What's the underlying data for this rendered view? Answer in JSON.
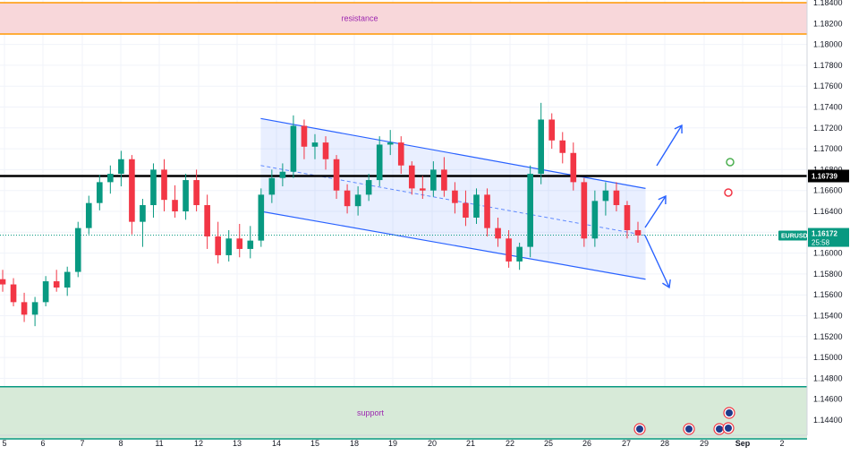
{
  "chart_data": {
    "type": "candlestick",
    "symbol": "EURUSD",
    "ylim": [
      1.143,
      1.184
    ],
    "y_ticks": [
      "1.18400",
      "1.18200",
      "1.18000",
      "1.17800",
      "1.17600",
      "1.17400",
      "1.17200",
      "1.17000",
      "1.16800",
      "1.16600",
      "1.16400",
      "1.16200",
      "1.16000",
      "1.15800",
      "1.15600",
      "1.15400",
      "1.15200",
      "1.15000",
      "1.14800",
      "1.14600",
      "1.14400"
    ],
    "x_ticks": [
      "5",
      "6",
      "7",
      "8",
      "11",
      "12",
      "13",
      "14",
      "15",
      "18",
      "19",
      "20",
      "21",
      "22",
      "25",
      "26",
      "27",
      "28",
      "29",
      "Sep",
      "2"
    ],
    "resistance": {
      "label": "resistance",
      "from": 1.181,
      "to": 1.184
    },
    "support": {
      "label": "support",
      "from": 1.1422,
      "to": 1.1472
    },
    "key_level": {
      "value": 1.16739,
      "label": "1.16739"
    },
    "current_price": {
      "value": 1.16172,
      "label": "1.16172",
      "countdown": "25:58",
      "symbol": "EURUSD"
    },
    "series": [
      {
        "values": [
          [
            1.1575,
            1.1584,
            1.1563,
            1.157
          ],
          [
            1.157,
            1.1576,
            1.1549,
            1.1553
          ],
          [
            1.1553,
            1.1562,
            1.1534,
            1.1541
          ],
          [
            1.1541,
            1.1558,
            1.153,
            1.1553
          ],
          [
            1.1553,
            1.1578,
            1.1549,
            1.1573
          ],
          [
            1.1573,
            1.1584,
            1.1563,
            1.1567
          ],
          [
            1.1567,
            1.1587,
            1.1559,
            1.1582
          ],
          [
            1.1582,
            1.163,
            1.1577,
            1.1624
          ],
          [
            1.1624,
            1.1655,
            1.1618,
            1.1648
          ],
          [
            1.1648,
            1.1675,
            1.1641,
            1.1668
          ],
          [
            1.1668,
            1.1684,
            1.1657,
            1.1676
          ],
          [
            1.1676,
            1.1698,
            1.1664,
            1.169
          ],
          [
            1.169,
            1.1694,
            1.1618,
            1.163
          ],
          [
            1.163,
            1.1652,
            1.1606,
            1.1646
          ],
          [
            1.1646,
            1.1686,
            1.1634,
            1.168
          ],
          [
            1.168,
            1.169,
            1.164,
            1.1651
          ],
          [
            1.1651,
            1.1665,
            1.1634,
            1.164
          ],
          [
            1.164,
            1.1676,
            1.1632,
            1.167
          ],
          [
            1.167,
            1.168,
            1.164,
            1.1646
          ],
          [
            1.1646,
            1.1656,
            1.1604,
            1.1616
          ],
          [
            1.1616,
            1.163,
            1.159,
            1.1598
          ],
          [
            1.1598,
            1.1622,
            1.1592,
            1.1614
          ],
          [
            1.1614,
            1.1628,
            1.1596,
            1.1604
          ],
          [
            1.1604,
            1.1626,
            1.1595,
            1.1612
          ],
          [
            1.1612,
            1.1662,
            1.1606,
            1.1656
          ],
          [
            1.1656,
            1.168,
            1.1648,
            1.1672
          ],
          [
            1.1672,
            1.1686,
            1.1664,
            1.1678
          ],
          [
            1.1678,
            1.1732,
            1.1672,
            1.1722
          ],
          [
            1.1722,
            1.1728,
            1.169,
            1.1702
          ],
          [
            1.1702,
            1.1714,
            1.169,
            1.1706
          ],
          [
            1.1706,
            1.1712,
            1.168,
            1.169
          ],
          [
            1.169,
            1.1694,
            1.1652,
            1.166
          ],
          [
            1.166,
            1.1666,
            1.1638,
            1.1645
          ],
          [
            1.1645,
            1.1664,
            1.1636,
            1.1656
          ],
          [
            1.1656,
            1.1676,
            1.165,
            1.167
          ],
          [
            1.167,
            1.1712,
            1.1664,
            1.1704
          ],
          [
            1.1704,
            1.1718,
            1.1694,
            1.1706
          ],
          [
            1.1706,
            1.1712,
            1.1676,
            1.1684
          ],
          [
            1.1684,
            1.1688,
            1.1656,
            1.1662
          ],
          [
            1.1662,
            1.1674,
            1.1652,
            1.166
          ],
          [
            1.166,
            1.1688,
            1.1654,
            1.168
          ],
          [
            1.168,
            1.1692,
            1.1654,
            1.166
          ],
          [
            1.166,
            1.1668,
            1.1638,
            1.1648
          ],
          [
            1.1648,
            1.166,
            1.1626,
            1.1634
          ],
          [
            1.1634,
            1.1662,
            1.1628,
            1.1656
          ],
          [
            1.1656,
            1.1662,
            1.1616,
            1.1624
          ],
          [
            1.1624,
            1.1634,
            1.1606,
            1.1614
          ],
          [
            1.1614,
            1.1622,
            1.1586,
            1.1592
          ],
          [
            1.1592,
            1.161,
            1.1584,
            1.1606
          ],
          [
            1.1606,
            1.1684,
            1.1596,
            1.1676
          ],
          [
            1.1676,
            1.1744,
            1.1666,
            1.1728
          ],
          [
            1.1728,
            1.1734,
            1.17,
            1.1708
          ],
          [
            1.1708,
            1.1716,
            1.1686,
            1.1696
          ],
          [
            1.1696,
            1.1706,
            1.166,
            1.1668
          ],
          [
            1.1668,
            1.1672,
            1.1606,
            1.1614
          ],
          [
            1.1614,
            1.166,
            1.1606,
            1.165
          ],
          [
            1.165,
            1.1668,
            1.1636,
            1.166
          ],
          [
            1.166,
            1.1668,
            1.164,
            1.1646
          ],
          [
            1.1646,
            1.165,
            1.1614,
            1.1622
          ],
          [
            1.1622,
            1.163,
            1.161,
            1.1617
          ]
        ]
      }
    ],
    "channel": {
      "upper": [
        [
          13.6,
          1.1729
        ],
        [
          27.5,
          1.1662
        ]
      ],
      "lower": [
        [
          13.6,
          1.164
        ],
        [
          27.5,
          1.1575
        ]
      ],
      "mid": [
        [
          13.6,
          1.1684
        ],
        [
          27.5,
          1.1617
        ]
      ]
    },
    "annotations": [
      {
        "type": "arrow",
        "direction": "up"
      },
      {
        "type": "arrow",
        "direction": "up"
      },
      {
        "type": "arrow",
        "direction": "down"
      },
      {
        "type": "circle",
        "color": "green"
      },
      {
        "type": "circle",
        "color": "red"
      }
    ],
    "event_markers": [
      "flag-icon",
      "flag-icon",
      "flag-icon",
      "flag-icon",
      "flag-icon"
    ],
    "colors": {
      "up": "#089981",
      "down": "#f23645",
      "channel": "#2962ff",
      "resistance_fill": "#f8d7da",
      "resistance_border": "#ff9800",
      "support_fill": "#d7ead8",
      "support_border": "#089981",
      "key_level": "#000000",
      "price_tag": "#089981"
    }
  }
}
